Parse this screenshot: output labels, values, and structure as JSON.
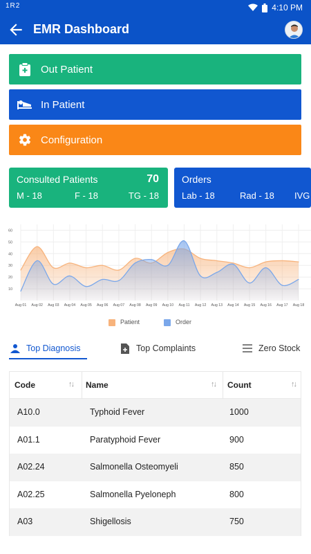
{
  "status_bar": {
    "time": "4:10 PM",
    "signal": "1R2"
  },
  "app_bar": {
    "title": "EMR Dashboard"
  },
  "nav_buttons": {
    "out_patient": "Out Patient",
    "in_patient": "In Patient",
    "configuration": "Configuration"
  },
  "consulted": {
    "title": "Consulted Patients",
    "value": "70",
    "m": "M - 18",
    "f": "F - 18",
    "tg": "TG - 18"
  },
  "orders": {
    "title": "Orders",
    "lab": "Lab - 18",
    "rad": "Rad - 18",
    "ivg": "IVG"
  },
  "chart_data": {
    "type": "area",
    "x": [
      "Aug 01",
      "Aug 02",
      "Aug 03",
      "Aug 04",
      "Aug 05",
      "Aug 06",
      "Aug 07",
      "Aug 08",
      "Aug 09",
      "Aug 10",
      "Aug 11",
      "Aug 12",
      "Aug 13",
      "Aug 14",
      "Aug 15",
      "Aug 16",
      "Aug 17",
      "Aug 18"
    ],
    "yticks": [
      10,
      20,
      30,
      40,
      50,
      60
    ],
    "ylim": [
      0,
      65
    ],
    "series": [
      {
        "name": "Patient",
        "color": "#f7b37c",
        "values": [
          26,
          46,
          28,
          32,
          28,
          30,
          26,
          36,
          32,
          41,
          44,
          36,
          34,
          32,
          28,
          33,
          34,
          33
        ]
      },
      {
        "name": "Order",
        "color": "#7aa7ea",
        "values": [
          8,
          34,
          14,
          21,
          12,
          18,
          17,
          32,
          35,
          30,
          51,
          21,
          24,
          31,
          15,
          28,
          13,
          18
        ]
      }
    ]
  },
  "tabs": {
    "diagnosis": "Top Diagnosis",
    "complaints": "Top Complaints",
    "zero_stock": "Zero Stock"
  },
  "table": {
    "headers": {
      "code": "Code",
      "name": "Name",
      "count": "Count"
    },
    "rows": [
      {
        "code": "A10.0",
        "name": "Typhoid Fever",
        "count": "1000"
      },
      {
        "code": "A01.1",
        "name": "Paratyphoid Fever",
        "count": "900"
      },
      {
        "code": "A02.24",
        "name": "Salmonella Osteomyeli",
        "count": "850"
      },
      {
        "code": "A02.25",
        "name": "Salmonella Pyeloneph",
        "count": "800"
      },
      {
        "code": "A03",
        "name": "Shigellosis",
        "count": "750"
      }
    ]
  }
}
